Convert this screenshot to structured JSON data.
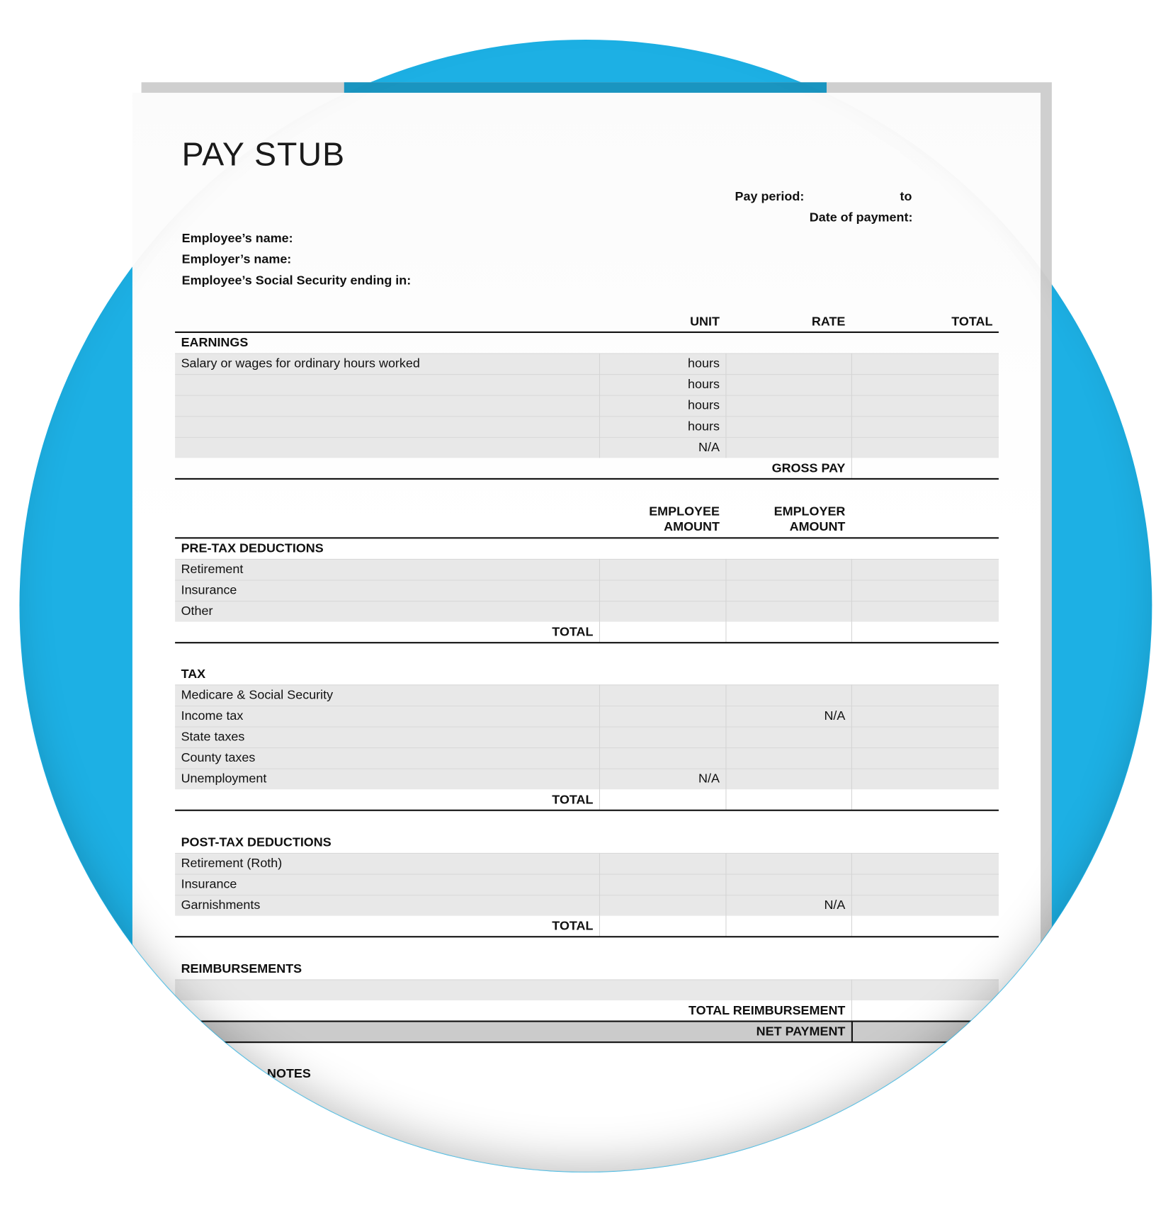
{
  "title": "PAY STUB",
  "header": {
    "pay_period_label": "Pay period:",
    "pay_period_to": "to",
    "date_of_payment_label": "Date of payment:",
    "employee_name_label": "Employee’s name:",
    "employer_name_label": "Employer’s name:",
    "ssn_label": "Employee’s Social Security ending in:"
  },
  "earnings": {
    "columns": [
      "UNIT",
      "RATE",
      "TOTAL"
    ],
    "section": "EARNINGS",
    "rows": [
      {
        "label": "Salary or wages for ordinary hours worked",
        "unit": "hours"
      },
      {
        "label": "",
        "unit": "hours"
      },
      {
        "label": "",
        "unit": "hours"
      },
      {
        "label": "",
        "unit": "hours"
      },
      {
        "label": "",
        "unit": "N/A"
      }
    ],
    "gross_pay": "GROSS PAY"
  },
  "deduction_columns": {
    "employee": [
      "EMPLOYEE",
      "AMOUNT"
    ],
    "employer": [
      "EMPLOYER",
      "AMOUNT"
    ]
  },
  "pretax": {
    "section": "PRE-TAX DEDUCTIONS",
    "rows": [
      {
        "label": "Retirement"
      },
      {
        "label": "Insurance"
      },
      {
        "label": "Other"
      }
    ],
    "total": "TOTAL"
  },
  "tax": {
    "section": "TAX",
    "rows": [
      {
        "label": "Medicare & Social Security",
        "employee": "",
        "employer": ""
      },
      {
        "label": "Income tax",
        "employee": "",
        "employer": "N/A"
      },
      {
        "label": "State taxes",
        "employee": "",
        "employer": ""
      },
      {
        "label": "County taxes",
        "employee": "",
        "employer": ""
      },
      {
        "label": "Unemployment",
        "employee": "N/A",
        "employer": ""
      }
    ],
    "total": "TOTAL"
  },
  "posttax": {
    "section": "POST-TAX DEDUCTIONS",
    "rows": [
      {
        "label": "Retirement (Roth)",
        "employer": ""
      },
      {
        "label": "Insurance",
        "employer": ""
      },
      {
        "label": "Garnishments",
        "employer": "N/A"
      }
    ],
    "total": "TOTAL"
  },
  "reimbursements": {
    "section": "REIMBURSEMENTS",
    "total": "TOTAL REIMBURSEMENT"
  },
  "net_payment": "NET PAYMENT",
  "notes": "NOTES",
  "colors": {
    "accent": "#1db0e4",
    "row_fill": "#e8e8e8",
    "net_fill": "#cbcbcb"
  }
}
